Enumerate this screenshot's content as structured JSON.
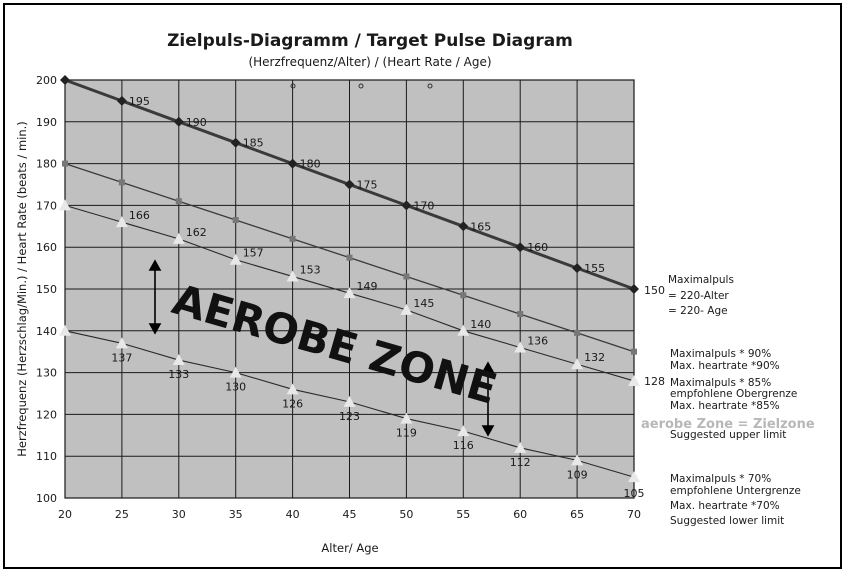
{
  "chart_data": {
    "type": "line",
    "title": "Zielpuls-Diagramm / Target Pulse Diagram",
    "subtitle": "(Herzfrequenz/Alter) / (Heart Rate / Age)",
    "xlabel": "Alter/ Age",
    "ylabel": "Herzfrequenz (Herzschlag/Min.) / Heart Rate (beats / min.)",
    "xlim": [
      20,
      70
    ],
    "ylim": [
      100,
      200
    ],
    "x_ticks": [
      "20",
      "25",
      "30",
      "35",
      "40",
      "45",
      "50",
      "55",
      "60",
      "65",
      "70"
    ],
    "y_ticks": [
      "100",
      "110",
      "120",
      "130",
      "140",
      "150",
      "160",
      "170",
      "180",
      "190",
      "200"
    ],
    "grid": true,
    "x": [
      20,
      25,
      30,
      35,
      40,
      45,
      50,
      55,
      60,
      65,
      70
    ],
    "series": [
      {
        "name": "Maximalpuls = 220-Alter = 220- Age",
        "values": [
          200,
          195,
          190,
          185,
          180,
          175,
          170,
          165,
          160,
          155,
          150
        ],
        "labels": [
          "",
          "195",
          "190",
          "185",
          "180",
          "175",
          "170",
          "165",
          "160",
          "155",
          "150"
        ],
        "color": "#3a3a3a"
      },
      {
        "name": "Maximalpuls * 90% Max. heartrate *90%",
        "values": [
          180,
          175.5,
          171,
          166.5,
          162,
          157.5,
          153,
          148.5,
          144,
          139.5,
          135
        ],
        "labels": [
          "",
          "",
          "",
          "",
          "",
          "",
          "",
          "",
          "",
          "",
          ""
        ],
        "color": "#3a3a3a"
      },
      {
        "name": "Maximalpuls * 85% empfohlene Obergrenze Max. heartrate *85% Suggested upper limit",
        "values": [
          170,
          166,
          162,
          157,
          153,
          149,
          145,
          140,
          136,
          132,
          128
        ],
        "labels": [
          "",
          "166",
          "162",
          "157",
          "153",
          "149",
          "145",
          "140",
          "136",
          "132",
          "128"
        ],
        "color": "#2a2a2a"
      },
      {
        "name": "Maximalpuls * 70% empfohlene Untergrenze Max. heartrate *70% Suggested lower limit",
        "values": [
          140,
          137,
          133,
          130,
          126,
          123,
          119,
          116,
          112,
          109,
          105
        ],
        "labels": [
          "",
          "137",
          "133",
          "130",
          "126",
          "123",
          "119",
          "116",
          "112",
          "109",
          "105"
        ],
        "color": "#2a2a2a"
      }
    ],
    "annotations": [
      "AEROBE ZONE",
      "aerobe Zone = Zielzone"
    ]
  },
  "legend": {
    "max": [
      "Maximalpuls",
      "= 220-Alter",
      "= 220- Age"
    ],
    "p90": [
      "Maximalpuls * 90%",
      "Max. heartrate *90%"
    ],
    "p85": [
      "Maximalpuls * 85%",
      "empfohlene Obergrenze",
      "Max. heartrate *85%"
    ],
    "zone": "aerobe Zone = Zielzone",
    "upper": "Suggested upper limit",
    "p70": [
      "Maximalpuls * 70%",
      "empfohlene Untergrenze",
      "Max. heartrate *70%",
      "Suggested lower limit"
    ]
  },
  "colors": {
    "plot_bg": "#c0c0c0",
    "grid": "#111111",
    "line": "#333333"
  }
}
